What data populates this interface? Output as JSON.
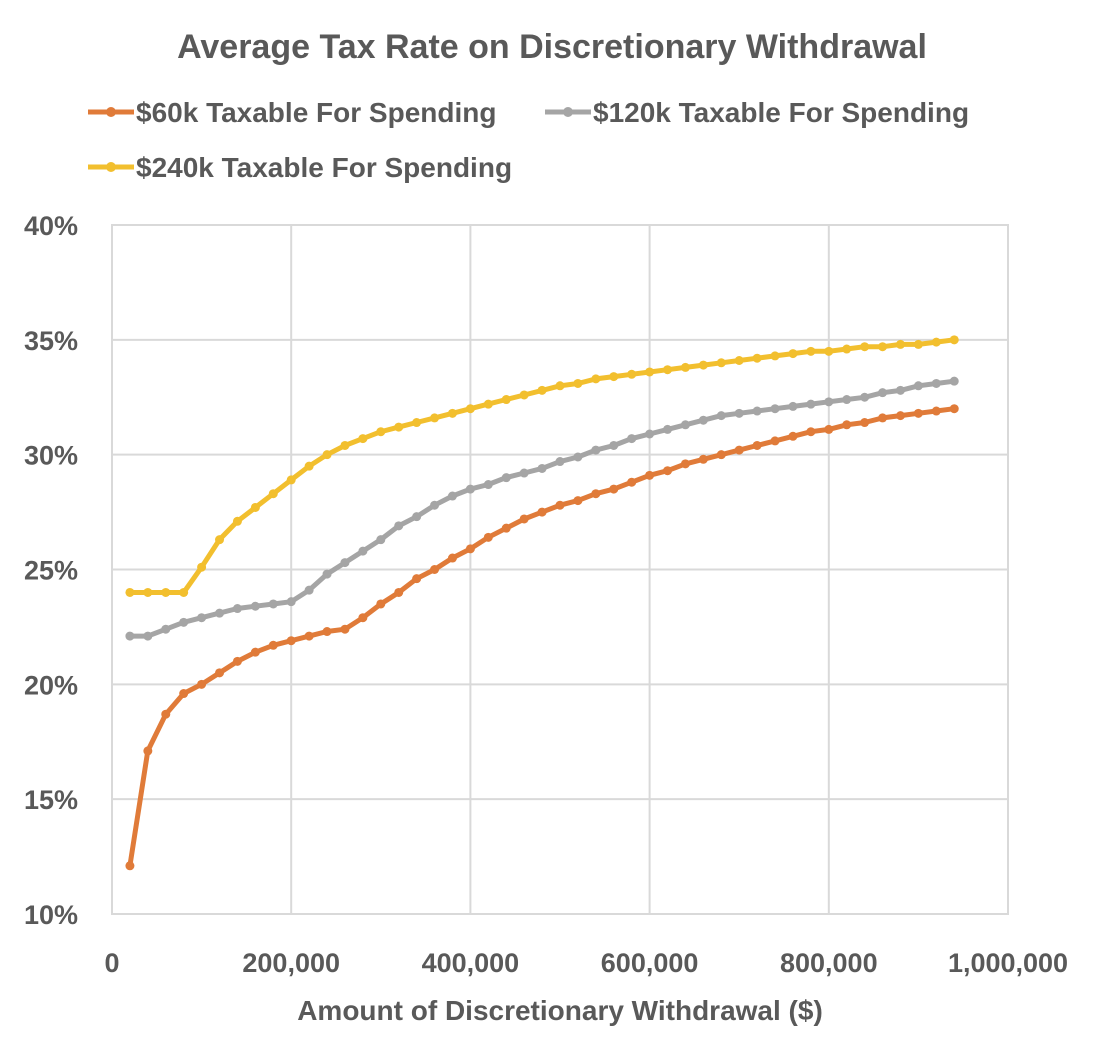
{
  "chart_data": {
    "type": "line",
    "title": "Average Tax Rate on Discretionary Withdrawal",
    "xlabel": "Amount of Discretionary Withdrawal ($)",
    "ylabel": "",
    "xlim": [
      0,
      1000000
    ],
    "ylim": [
      0.1,
      0.4
    ],
    "x_ticks": [
      0,
      200000,
      400000,
      600000,
      800000,
      1000000
    ],
    "x_tick_labels": [
      "0",
      "200,000",
      "400,000",
      "600,000",
      "800,000",
      "1,000,000"
    ],
    "y_ticks": [
      0.1,
      0.15,
      0.2,
      0.25,
      0.3,
      0.35,
      0.4
    ],
    "y_tick_labels": [
      "10%",
      "15%",
      "20%",
      "25%",
      "30%",
      "35%",
      "40%"
    ],
    "grid": true,
    "legend_position": "top",
    "x": [
      20000,
      40000,
      60000,
      80000,
      100000,
      120000,
      140000,
      160000,
      180000,
      200000,
      220000,
      240000,
      260000,
      280000,
      300000,
      320000,
      340000,
      360000,
      380000,
      400000,
      420000,
      440000,
      460000,
      480000,
      500000,
      520000,
      540000,
      560000,
      580000,
      600000,
      620000,
      640000,
      660000,
      680000,
      700000,
      720000,
      740000,
      760000,
      780000,
      800000,
      820000,
      840000,
      860000,
      880000,
      900000,
      920000,
      940000
    ],
    "series": [
      {
        "name": "$60k Taxable For Spending",
        "color": "#E07B39",
        "values": [
          0.121,
          0.171,
          0.187,
          0.196,
          0.2,
          0.205,
          0.21,
          0.214,
          0.217,
          0.219,
          0.221,
          0.223,
          0.224,
          0.229,
          0.235,
          0.24,
          0.246,
          0.25,
          0.255,
          0.259,
          0.264,
          0.268,
          0.272,
          0.275,
          0.278,
          0.28,
          0.283,
          0.285,
          0.288,
          0.291,
          0.293,
          0.296,
          0.298,
          0.3,
          0.302,
          0.304,
          0.306,
          0.308,
          0.31,
          0.311,
          0.313,
          0.314,
          0.316,
          0.317,
          0.318,
          0.319,
          0.32
        ]
      },
      {
        "name": "$120k Taxable For Spending",
        "color": "#A5A5A5",
        "values": [
          0.221,
          0.221,
          0.224,
          0.227,
          0.229,
          0.231,
          0.233,
          0.234,
          0.235,
          0.236,
          0.241,
          0.248,
          0.253,
          0.258,
          0.263,
          0.269,
          0.273,
          0.278,
          0.282,
          0.285,
          0.287,
          0.29,
          0.292,
          0.294,
          0.297,
          0.299,
          0.302,
          0.304,
          0.307,
          0.309,
          0.311,
          0.313,
          0.315,
          0.317,
          0.318,
          0.319,
          0.32,
          0.321,
          0.322,
          0.323,
          0.324,
          0.325,
          0.327,
          0.328,
          0.33,
          0.331,
          0.332
        ]
      },
      {
        "name": "$240k Taxable For Spending",
        "color": "#F2BF2E",
        "values": [
          0.24,
          0.24,
          0.24,
          0.24,
          0.251,
          0.263,
          0.271,
          0.277,
          0.283,
          0.289,
          0.295,
          0.3,
          0.304,
          0.307,
          0.31,
          0.312,
          0.314,
          0.316,
          0.318,
          0.32,
          0.322,
          0.324,
          0.326,
          0.328,
          0.33,
          0.331,
          0.333,
          0.334,
          0.335,
          0.336,
          0.337,
          0.338,
          0.339,
          0.34,
          0.341,
          0.342,
          0.343,
          0.344,
          0.345,
          0.345,
          0.346,
          0.347,
          0.347,
          0.348,
          0.348,
          0.349,
          0.35
        ]
      }
    ]
  }
}
